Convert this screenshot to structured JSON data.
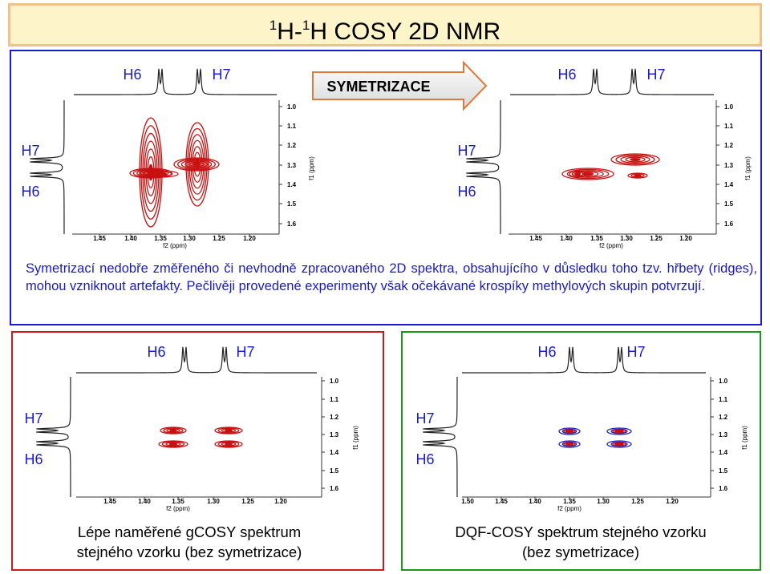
{
  "title": {
    "sup1": "1",
    "text1": "H-",
    "sup2": "1",
    "text2": "H COSY 2D NMR"
  },
  "top_panel": {
    "arrow_label": "SYMETRIZACE",
    "left_spectrum": {
      "top_labels": [
        "H6",
        "H7"
      ],
      "side_labels": [
        "H7",
        "H6"
      ],
      "f1_ticks": [
        "1.0",
        "1.1",
        "1.2",
        "1.3",
        "1.4",
        "1.5",
        "1.6"
      ],
      "f1_label": "f1 (ppm)",
      "f2_ticks": [
        "1.45",
        "1.40",
        "1.35",
        "1.30",
        "1.25",
        "1.20"
      ],
      "f2_label": "f2 (ppm)"
    },
    "right_spectrum": {
      "top_labels": [
        "H6",
        "H7"
      ],
      "side_labels": [
        "H7",
        "H6"
      ],
      "f1_ticks": [
        "1.0",
        "1.1",
        "1.2",
        "1.3",
        "1.4",
        "1.5",
        "1.6"
      ],
      "f1_label": "f1 (ppm)",
      "f2_ticks": [
        "1.45",
        "1.40",
        "1.35",
        "1.30",
        "1.25",
        "1.20"
      ],
      "f2_label": "f2 (ppm)"
    },
    "description": "Symetrizací nedobře změřeného či nevhodně zpracovaného 2D spektra, obsahujícího v důsledku toho tzv. hřbety (ridges), mohou vzniknout artefakty. Pečlivěji provedené experimenty však očekávané krospíky methylových skupin potvrzují."
  },
  "bottom_left": {
    "spectrum": {
      "top_labels": [
        "H6",
        "H7"
      ],
      "side_labels": [
        "H7",
        "H6"
      ],
      "f1_ticks": [
        "1.0",
        "1.1",
        "1.2",
        "1.3",
        "1.4",
        "1.5",
        "1.6"
      ],
      "f1_label": "f1 (ppm)",
      "f2_ticks": [
        "1.45",
        "1.40",
        "1.35",
        "1.30",
        "1.25",
        "1.20"
      ],
      "f2_label": "f2 (ppm)"
    },
    "caption": [
      "Lépe naměřené gCOSY spektrum",
      "stejného vzorku (bez symetrizace)"
    ]
  },
  "bottom_right": {
    "spectrum": {
      "top_labels": [
        "H6",
        "H7"
      ],
      "side_labels": [
        "H7",
        "H6"
      ],
      "f1_ticks": [
        "1.0",
        "1.1",
        "1.2",
        "1.3",
        "1.4",
        "1.5",
        "1.6"
      ],
      "f1_label": "f1 (ppm)",
      "f2_ticks": [
        "1.50",
        "1.45",
        "1.40",
        "1.35",
        "1.30",
        "1.25",
        "1.20"
      ],
      "f2_label": "f2 (ppm)"
    },
    "caption": [
      "DQF-COSY spektrum stejného vzorku",
      "(bez symetrizace)"
    ]
  }
}
